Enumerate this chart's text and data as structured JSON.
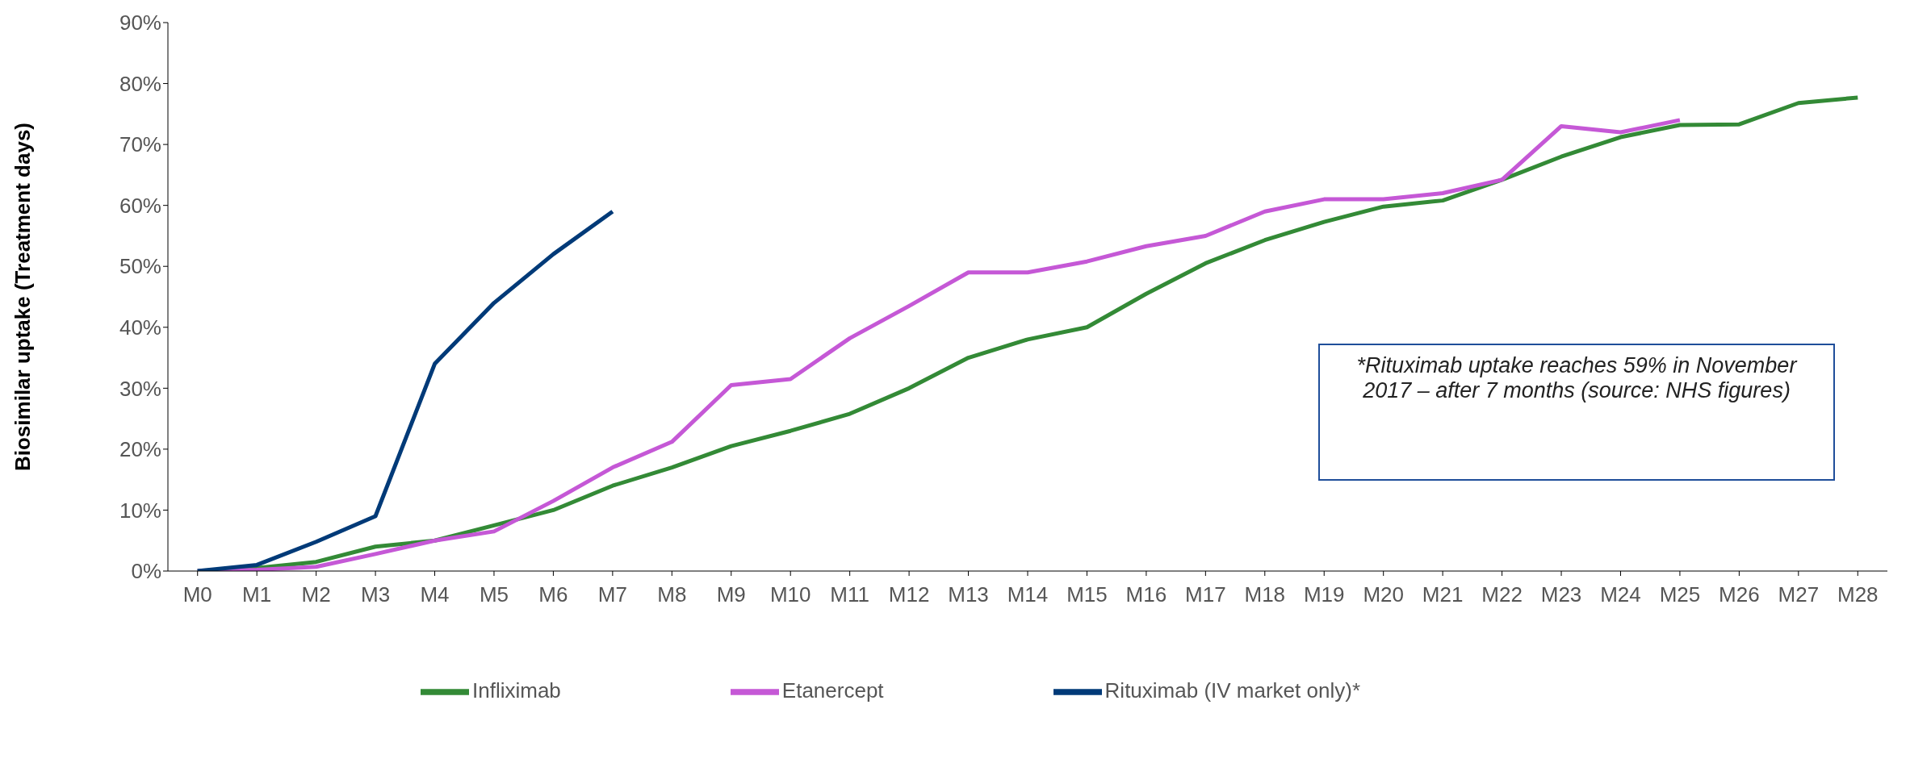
{
  "chart_data": {
    "type": "line",
    "ylabel": "Biosimilar uptake (Treatment days)",
    "categories": [
      "M0",
      "M1",
      "M2",
      "M3",
      "M4",
      "M5",
      "M6",
      "M7",
      "M8",
      "M9",
      "M10",
      "M11",
      "M12",
      "M13",
      "M14",
      "M15",
      "M16",
      "M17",
      "M18",
      "M19",
      "M20",
      "M21",
      "M22",
      "M23",
      "M24",
      "M25",
      "M26",
      "M27",
      "M28"
    ],
    "series": [
      {
        "name": "Infliximab",
        "color": "#338a36",
        "values": [
          0,
          0.5,
          1.5,
          4,
          5,
          7.5,
          10,
          14,
          17,
          20.5,
          23,
          25.8,
          30,
          35,
          38,
          40,
          45.5,
          50.5,
          54.3,
          57.3,
          59.8,
          60.8,
          64.2,
          68,
          71.2,
          73.2,
          73.3,
          76.8,
          77.7
        ]
      },
      {
        "name": "Etanercept",
        "color": "#c558d6",
        "values": [
          0,
          0.2,
          0.7,
          2.8,
          5,
          6.5,
          11.5,
          17,
          21.2,
          30.5,
          31.5,
          38.2,
          43.5,
          49,
          49,
          50.8,
          53.3,
          55,
          59,
          61,
          61,
          62,
          64.2,
          73,
          72,
          74,
          null,
          null,
          null
        ]
      },
      {
        "name": "Rituximab (IV market only)*",
        "color": "#003a78",
        "values": [
          0,
          1,
          4.8,
          9,
          34,
          44,
          52,
          59,
          null,
          null,
          null,
          null,
          null,
          null,
          null,
          null,
          null,
          null,
          null,
          null,
          null,
          null,
          null,
          null,
          null,
          null,
          null,
          null,
          null
        ]
      }
    ],
    "ylim": [
      0,
      90
    ],
    "yticks": [
      {
        "value": 0,
        "label": "0%"
      },
      {
        "value": 10,
        "label": "10%"
      },
      {
        "value": 20,
        "label": "20%"
      },
      {
        "value": 30,
        "label": "30%"
      },
      {
        "value": 40,
        "label": "40%"
      },
      {
        "value": 50,
        "label": "50%"
      },
      {
        "value": 60,
        "label": "60%"
      },
      {
        "value": 70,
        "label": "70%"
      },
      {
        "value": 80,
        "label": "80%"
      },
      {
        "value": 90,
        "label": "90%"
      }
    ],
    "grid": false,
    "legend": "bottom",
    "marker": "none",
    "line_style": "solid",
    "annotations": [
      "*Rituximab uptake reaches 59% in November 2017 – after 7 months (source: NHS figures)"
    ]
  }
}
